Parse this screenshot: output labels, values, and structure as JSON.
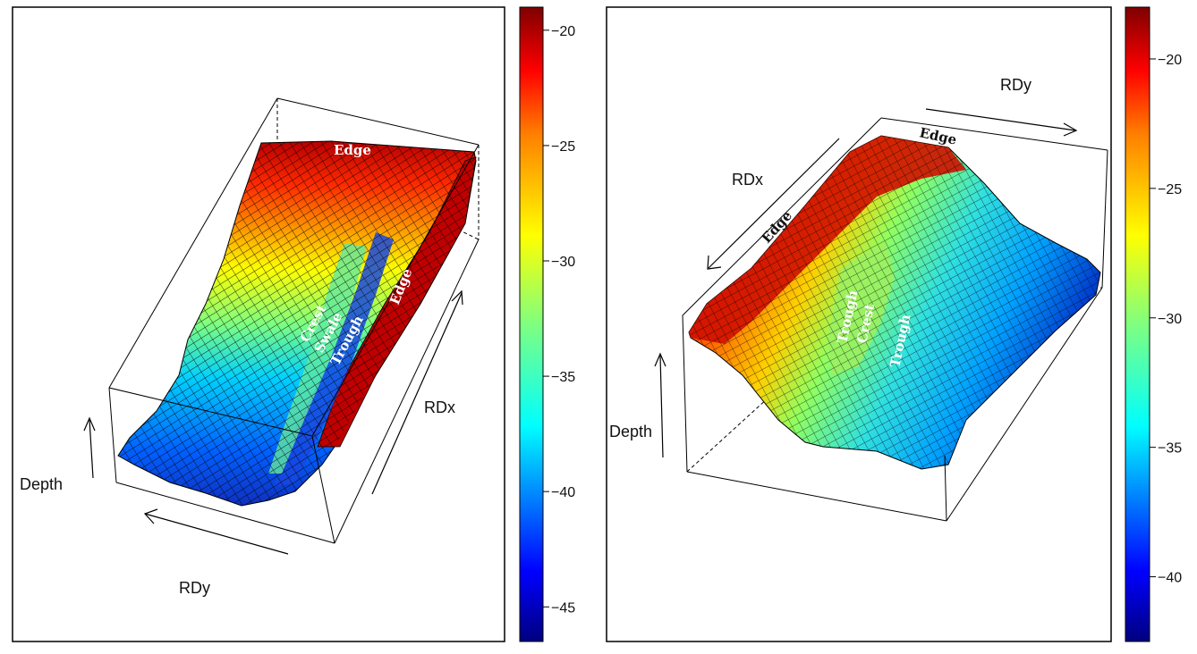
{
  "chart_data": [
    {
      "type": "surface",
      "panel": "left",
      "axis_labels": {
        "x": "RDx",
        "y": "RDy",
        "z": "Depth"
      },
      "colorbar": {
        "min": -46.5,
        "max": -19,
        "ticks": [
          -20,
          -25,
          -30,
          -35,
          -40,
          -45
        ],
        "tick_labels": [
          "−20",
          "−25",
          "−30",
          "−35",
          "−40",
          "−45"
        ]
      },
      "annotations": [
        "Edge",
        "Edge",
        "Crest",
        "Swale",
        "Trough"
      ],
      "colormap": [
        "#00007f",
        "#0000ff",
        "#007fff",
        "#00ffff",
        "#7fff7f",
        "#ffff00",
        "#ff7f00",
        "#ff0000",
        "#7f0000"
      ]
    },
    {
      "type": "surface",
      "panel": "right",
      "axis_labels": {
        "x": "RDx",
        "y": "RDy",
        "z": "Depth"
      },
      "colorbar": {
        "min": -42.5,
        "max": -18,
        "ticks": [
          -20,
          -25,
          -30,
          -35,
          -40
        ],
        "tick_labels": [
          "−20",
          "−25",
          "−30",
          "−35",
          "−40"
        ]
      },
      "annotations": [
        "Edge",
        "Edge",
        "Trough",
        "Crest",
        "Trough"
      ],
      "colormap": [
        "#00007f",
        "#0000ff",
        "#007fff",
        "#00ffff",
        "#7fff7f",
        "#ffff00",
        "#ff7f00",
        "#ff0000",
        "#7f0000"
      ]
    }
  ]
}
